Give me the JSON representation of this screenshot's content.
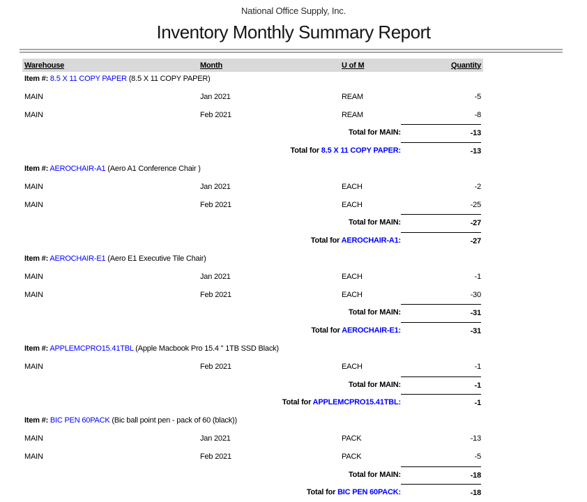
{
  "report": {
    "company": "National Office Supply, Inc.",
    "title": "Inventory Monthly Summary Report"
  },
  "table": {
    "headers": {
      "warehouse": "Warehouse",
      "month": "Month",
      "uofm": "U of M",
      "quantity": "Quantity"
    },
    "item_label": "Item #:",
    "total_for_label": "Total for",
    "sections": [
      {
        "item_code": "8.5 X 11 COPY PAPER",
        "item_desc": "(8.5 X 11 COPY PAPER)",
        "rows": [
          {
            "warehouse": "MAIN",
            "month": "Jan 2021",
            "uofm": "REAM",
            "qty": "-5"
          },
          {
            "warehouse": "MAIN",
            "month": "Feb 2021",
            "uofm": "REAM",
            "qty": "-8"
          }
        ],
        "warehouse_total_label": "Total for MAIN:",
        "warehouse_total": "-13",
        "item_total_code": "8.5 X 11 COPY PAPER:",
        "item_total": "-13"
      },
      {
        "item_code": "AEROCHAIR-A1",
        "item_desc": "(Aero A1 Conference Chair )",
        "rows": [
          {
            "warehouse": "MAIN",
            "month": "Jan 2021",
            "uofm": "EACH",
            "qty": "-2"
          },
          {
            "warehouse": "MAIN",
            "month": "Feb 2021",
            "uofm": "EACH",
            "qty": "-25"
          }
        ],
        "warehouse_total_label": "Total for MAIN:",
        "warehouse_total": "-27",
        "item_total_code": "AEROCHAIR-A1:",
        "item_total": "-27"
      },
      {
        "item_code": "AEROCHAIR-E1",
        "item_desc": "(Aero E1 Executive Tile Chair)",
        "rows": [
          {
            "warehouse": "MAIN",
            "month": "Jan 2021",
            "uofm": "EACH",
            "qty": "-1"
          },
          {
            "warehouse": "MAIN",
            "month": "Feb 2021",
            "uofm": "EACH",
            "qty": "-30"
          }
        ],
        "warehouse_total_label": "Total for MAIN:",
        "warehouse_total": "-31",
        "item_total_code": "AEROCHAIR-E1:",
        "item_total": "-31"
      },
      {
        "item_code": "APPLEMCPRO15.41TBL",
        "item_desc": "(Apple Macbook Pro 15.4 \" 1TB SSD Black)",
        "rows": [
          {
            "warehouse": "MAIN",
            "month": "Feb 2021",
            "uofm": "EACH",
            "qty": "-1"
          }
        ],
        "warehouse_total_label": "Total for MAIN:",
        "warehouse_total": "-1",
        "item_total_code": "APPLEMCPRO15.41TBL:",
        "item_total": "-1"
      },
      {
        "item_code": "BIC PEN 60PACK",
        "item_desc": "(Bic ball point pen - pack of 60 (black))",
        "rows": [
          {
            "warehouse": "MAIN",
            "month": "Jan 2021",
            "uofm": "PACK",
            "qty": "-13"
          },
          {
            "warehouse": "MAIN",
            "month": "Feb 2021",
            "uofm": "PACK",
            "qty": "-5"
          }
        ],
        "warehouse_total_label": "Total for MAIN:",
        "warehouse_total": "-18",
        "item_total_code": "BIC PEN 60PACK:",
        "item_total": "-18"
      }
    ]
  },
  "colors": {
    "link_blue": "#0000ff",
    "header_bg": "#d9d9d9",
    "rule_gray": "#a6a6a6"
  }
}
